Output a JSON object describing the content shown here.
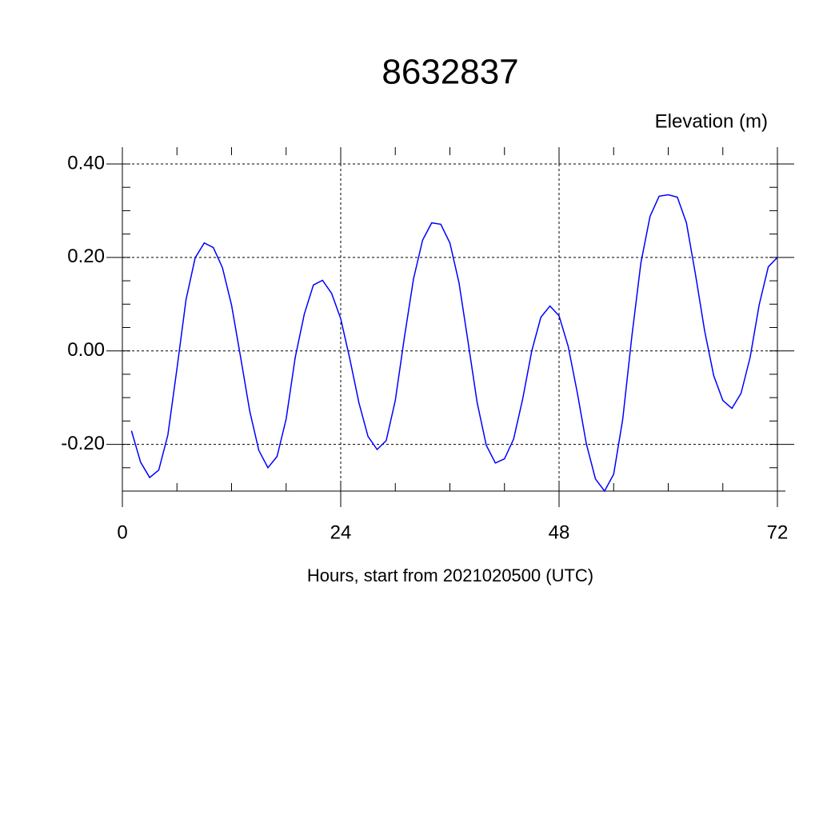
{
  "chart_data": {
    "type": "line",
    "title": "8632837",
    "subtitle": "Elevation (m)",
    "x_label": "Hours, start from 2021020500 (UTC)",
    "x": [
      1,
      2,
      3,
      4,
      5,
      6,
      7,
      8,
      9,
      10,
      11,
      12,
      13,
      14,
      15,
      16,
      17,
      18,
      19,
      20,
      21,
      22,
      23,
      24,
      25,
      26,
      27,
      28,
      29,
      30,
      31,
      32,
      33,
      34,
      35,
      36,
      37,
      38,
      39,
      40,
      41,
      42,
      43,
      44,
      45,
      46,
      47,
      48,
      49,
      50,
      51,
      52,
      53,
      54,
      55,
      56,
      57,
      58,
      59,
      60,
      61,
      62,
      63,
      64,
      65,
      66,
      67,
      68,
      69,
      70,
      71,
      72
    ],
    "series": [
      {
        "name": "Elevation",
        "color": "#0000ff",
        "values": [
          -0.171,
          -0.238,
          -0.271,
          -0.255,
          -0.18,
          -0.038,
          0.11,
          0.199,
          0.231,
          0.221,
          0.178,
          0.098,
          -0.014,
          -0.129,
          -0.213,
          -0.25,
          -0.226,
          -0.146,
          -0.014,
          0.079,
          0.141,
          0.151,
          0.123,
          0.069,
          -0.017,
          -0.111,
          -0.183,
          -0.211,
          -0.192,
          -0.106,
          0.029,
          0.154,
          0.237,
          0.274,
          0.271,
          0.231,
          0.146,
          0.019,
          -0.111,
          -0.202,
          -0.24,
          -0.231,
          -0.189,
          -0.103,
          0.0,
          0.072,
          0.096,
          0.075,
          0.01,
          -0.089,
          -0.199,
          -0.274,
          -0.3,
          -0.264,
          -0.146,
          0.031,
          0.189,
          0.288,
          0.331,
          0.334,
          0.329,
          0.274,
          0.163,
          0.043,
          -0.053,
          -0.106,
          -0.123,
          -0.091,
          -0.014,
          0.099,
          0.18,
          0.2
        ]
      }
    ],
    "xlim": [
      0,
      72
    ],
    "xticks": [
      0,
      24,
      48,
      72
    ],
    "ylim": [
      -0.3,
      0.4
    ],
    "yticks": [
      {
        "value": -0.2,
        "label": "-0.20"
      },
      {
        "value": 0,
        "label": "0.00"
      },
      {
        "value": 0.2,
        "label": "0.20"
      },
      {
        "value": 0.4,
        "label": "0.40"
      }
    ],
    "grid": true
  }
}
